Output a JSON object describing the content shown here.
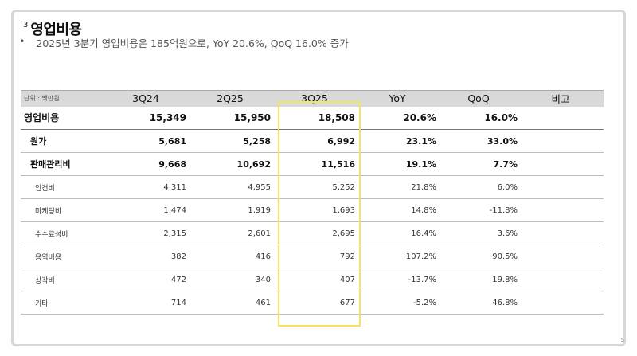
{
  "section_number": "3",
  "title": "영업비용",
  "bullet": "2025년 3분기 영업비용은 185억원으로, YoY 20.6%, QoQ 16.0% 증가",
  "table": {
    "unit_label": "단위 : 백만원",
    "headers": [
      "3Q24",
      "2Q25",
      "3Q25",
      "YoY",
      "QoQ",
      "비고"
    ],
    "rows": [
      {
        "label": "영업비용",
        "type": "total",
        "cells": [
          "15,349",
          "15,950",
          "18,508",
          "20.6%",
          "16.0%",
          ""
        ]
      },
      {
        "label": "원가",
        "type": "major",
        "cells": [
          "5,681",
          "5,258",
          "6,992",
          "23.1%",
          "33.0%",
          ""
        ]
      },
      {
        "label": "판매관리비",
        "type": "major",
        "cells": [
          "9,668",
          "10,692",
          "11,516",
          "19.1%",
          "7.7%",
          ""
        ]
      },
      {
        "label": "인건비",
        "type": "minor",
        "cells": [
          "4,311",
          "4,955",
          "5,252",
          "21.8%",
          "6.0%",
          ""
        ]
      },
      {
        "label": "마케팅비",
        "type": "minor",
        "cells": [
          "1,474",
          "1,919",
          "1,693",
          "14.8%",
          "-11.8%",
          ""
        ]
      },
      {
        "label": "수수료성비",
        "type": "minor",
        "cells": [
          "2,315",
          "2,601",
          "2,695",
          "16.4%",
          "3.6%",
          ""
        ]
      },
      {
        "label": "용역비용",
        "type": "minor",
        "cells": [
          "382",
          "416",
          "792",
          "107.2%",
          "90.5%",
          ""
        ]
      },
      {
        "label": "상각비",
        "type": "minor",
        "cells": [
          "472",
          "340",
          "407",
          "-13.7%",
          "19.8%",
          ""
        ]
      },
      {
        "label": "기타",
        "type": "minor",
        "cells": [
          "714",
          "461",
          "677",
          "-5.2%",
          "46.8%",
          ""
        ]
      }
    ],
    "highlight_color": "#f7e35b"
  },
  "page_number": "5"
}
